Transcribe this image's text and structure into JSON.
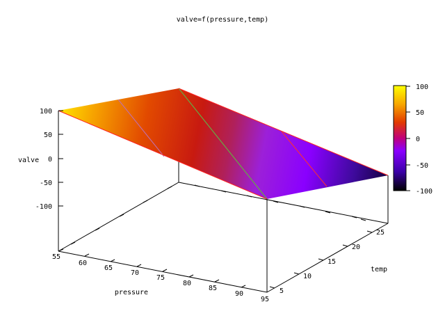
{
  "chart_data": {
    "type": "surface3d",
    "title": "valve=f(pressure,temp)",
    "xlabel": "pressure",
    "ylabel": "temp",
    "zlabel": "valve",
    "xlim": [
      55,
      95
    ],
    "ylim": [
      3,
      27
    ],
    "zlim": [
      -150,
      100
    ],
    "xticks": [
      "55",
      "60",
      "65",
      "70",
      "75",
      "80",
      "85",
      "90",
      "95"
    ],
    "yticks": [
      "5",
      "10",
      "15",
      "20",
      "25"
    ],
    "zticks": [
      "100",
      "50",
      "0",
      "-50",
      "-100"
    ],
    "colorbar": {
      "ticks": [
        "100",
        "50",
        "0",
        "-50",
        "-100"
      ],
      "range": [
        -100,
        100
      ],
      "palette": [
        "#000000",
        "#3b00a8",
        "#8a00ff",
        "#c0007a",
        "#e23a00",
        "#f7a500",
        "#ffff00"
      ]
    },
    "surface": {
      "corners": [
        {
          "pressure": 55,
          "temp": 3,
          "valve": 100
        },
        {
          "pressure": 95,
          "temp": 3,
          "valve": -50
        },
        {
          "pressure": 55,
          "temp": 27,
          "valve": 100
        },
        {
          "pressure": 95,
          "temp": 27,
          "valve": -100
        }
      ],
      "contour_levels": [
        50,
        0,
        -50
      ]
    },
    "grid": false,
    "legend": "none"
  }
}
